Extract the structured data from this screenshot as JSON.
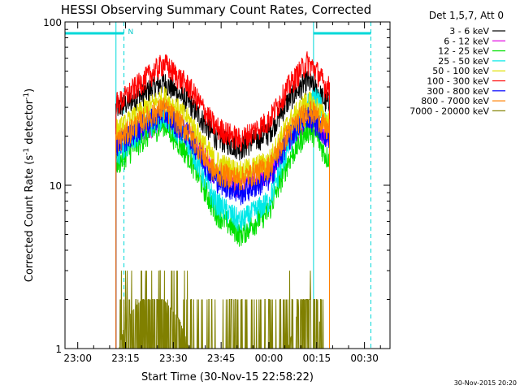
{
  "chart_data": {
    "type": "line",
    "title": "HESSI Observing Summary Count Rates, Corrected",
    "xlabel": "Start Time (30-Nov-15 22:58:22)",
    "ylabel": "Corrected Count Rate (s⁻¹ detector⁻¹)",
    "ylabel_parts": {
      "main": "Corrected Count Rate (s",
      "sup1": "-1",
      "mid": " detector",
      "sup2": "-1",
      "end": ")"
    },
    "yscale": "log",
    "ylim": [
      1,
      100
    ],
    "xlim": [
      "22:56",
      "00:38"
    ],
    "x_ticks": [
      "23:00",
      "23:15",
      "23:30",
      "23:45",
      "00:00",
      "00:15",
      "00:30"
    ],
    "y_ticks": [
      "1",
      "10",
      "100"
    ],
    "legend_title": "Det 1,5,7, Att 0",
    "legend_position": "right",
    "timestamp": "30-Nov-2015 20:20",
    "night_marker_label": "N",
    "night_markers": [
      {
        "from": "22:56",
        "to": "23:14:30"
      },
      {
        "from": "00:14",
        "to": "00:32"
      }
    ],
    "vertical_lines": [
      {
        "time": "23:12",
        "style": "solid",
        "color": "#00d8d8"
      },
      {
        "time": "23:14:30",
        "style": "dashed",
        "color": "#00d8d8"
      },
      {
        "time": "00:14",
        "style": "solid",
        "color": "#00d8d8"
      },
      {
        "time": "00:32",
        "style": "dashed",
        "color": "#00d8d8"
      }
    ],
    "data_start": "23:12",
    "data_end": "00:19",
    "series": [
      {
        "name": "3 - 6 keV",
        "color": "#000000",
        "x": [
          "23:13",
          "23:20",
          "23:27",
          "23:35",
          "23:43",
          "23:51",
          "00:00",
          "00:06",
          "00:12",
          "00:15",
          "00:18"
        ],
        "values": [
          30,
          36,
          43,
          32,
          20,
          17,
          21,
          33,
          44,
          38,
          32
        ]
      },
      {
        "name": "6 - 12 keV",
        "color": "#e000e0",
        "x": [
          "23:13",
          "23:20",
          "23:27",
          "23:35",
          "23:43",
          "23:51",
          "00:00",
          "00:06",
          "00:12",
          "00:15",
          "00:18"
        ],
        "values": [
          19,
          22,
          26,
          20,
          12,
          10,
          12,
          19,
          26,
          23,
          20
        ]
      },
      {
        "name": "12 - 25 keV",
        "color": "#00e000",
        "x": [
          "23:13",
          "23:20",
          "23:27",
          "23:35",
          "23:43",
          "23:51",
          "00:00",
          "00:06",
          "00:12",
          "00:15",
          "00:18"
        ],
        "values": [
          14,
          19,
          24,
          15,
          7,
          5,
          7,
          14,
          22,
          20,
          15
        ]
      },
      {
        "name": "25 - 50 keV",
        "color": "#00e8e8",
        "x": [
          "23:13",
          "23:20",
          "23:27",
          "23:35",
          "23:43",
          "23:51",
          "00:00",
          "00:06",
          "00:12",
          "00:15",
          "00:18"
        ],
        "values": [
          16,
          22,
          27,
          18,
          8,
          6,
          8,
          17,
          31,
          35,
          25
        ]
      },
      {
        "name": "50 - 100 keV",
        "color": "#e0e000",
        "x": [
          "23:13",
          "23:20",
          "23:27",
          "23:35",
          "23:43",
          "23:51",
          "00:00",
          "00:06",
          "00:12",
          "00:15",
          "00:18"
        ],
        "values": [
          22,
          28,
          35,
          25,
          14,
          12,
          14,
          24,
          33,
          30,
          25
        ]
      },
      {
        "name": "100 - 300 keV",
        "color": "#ff0000",
        "x": [
          "23:13",
          "23:20",
          "23:27",
          "23:35",
          "23:43",
          "23:51",
          "00:00",
          "00:06",
          "00:12",
          "00:15",
          "00:18"
        ],
        "values": [
          32,
          43,
          56,
          40,
          23,
          19,
          25,
          40,
          57,
          50,
          40
        ]
      },
      {
        "name": "300 - 800 keV",
        "color": "#0000ff",
        "x": [
          "23:13",
          "23:20",
          "23:27",
          "23:35",
          "23:43",
          "23:51",
          "00:00",
          "00:06",
          "00:12",
          "00:15",
          "00:18"
        ],
        "values": [
          18,
          23,
          28,
          20,
          11,
          9,
          11,
          19,
          27,
          24,
          20
        ]
      },
      {
        "name": "800 - 7000 keV",
        "color": "#ff8000",
        "x": [
          "23:13",
          "23:20",
          "23:27",
          "23:35",
          "23:43",
          "23:51",
          "00:00",
          "00:06",
          "00:12",
          "00:15",
          "00:18"
        ],
        "values": [
          19,
          25,
          30,
          21,
          12,
          11,
          13,
          21,
          29,
          27,
          22
        ]
      },
      {
        "name": "7000 - 20000 keV",
        "color": "#808000",
        "x": [
          "23:13",
          "23:15",
          "23:20",
          "23:27",
          "23:32",
          "23:35",
          "00:06",
          "00:10",
          "00:15",
          "00:17"
        ],
        "values": [
          1,
          1.5,
          2,
          2,
          1.5,
          1,
          1,
          2,
          2,
          1
        ]
      }
    ]
  }
}
